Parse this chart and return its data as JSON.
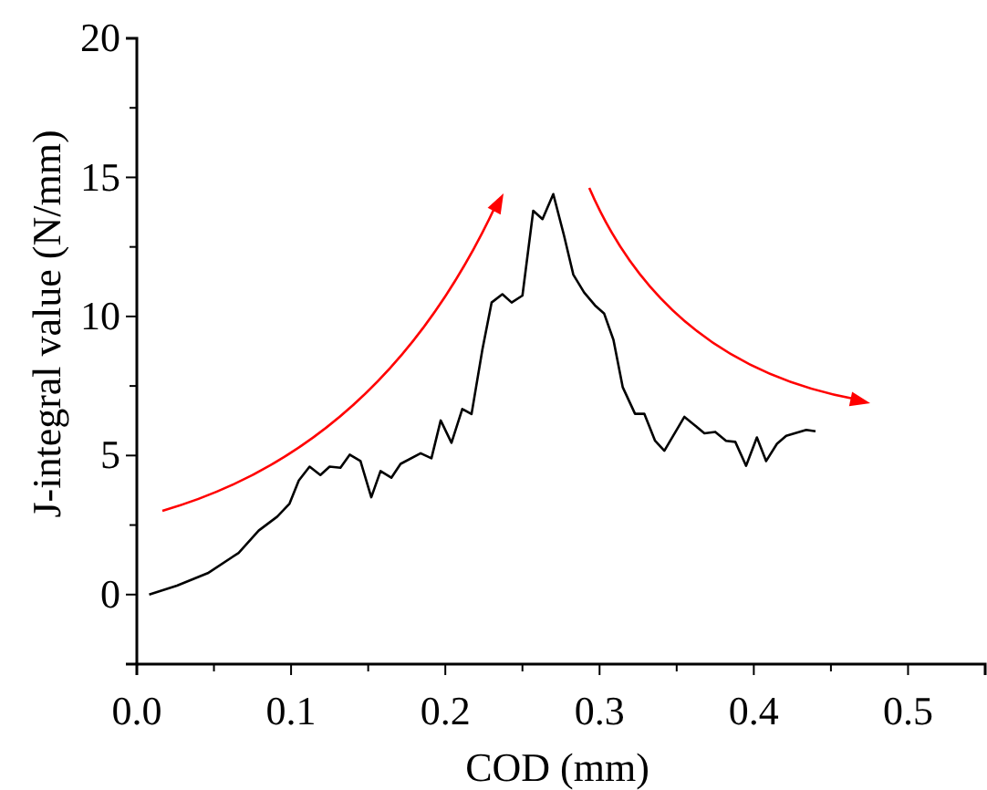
{
  "chart_data": {
    "type": "line",
    "xlabel": "COD (mm)",
    "ylabel": "J-integral value (N/mm)",
    "xlim": [
      0,
      0.55
    ],
    "ylim": [
      -2.5,
      20
    ],
    "xticks": [
      {
        "value": 0,
        "label": "0.0"
      },
      {
        "value": 0.05,
        "label": null
      },
      0.1,
      {
        "value": 0.15,
        "label": null
      },
      0.2,
      {
        "value": 0.25,
        "label": null
      },
      0.3,
      {
        "value": 0.35,
        "label": null
      },
      0.4,
      {
        "value": 0.45,
        "label": null
      },
      0.5
    ],
    "yticks": [
      0,
      {
        "value": 2.5,
        "label": null
      },
      5,
      {
        "value": 7.5,
        "label": null
      },
      10,
      {
        "value": 12.5,
        "label": null
      },
      15,
      {
        "value": 17.5,
        "label": null
      },
      20
    ],
    "grid": false,
    "marker": "none",
    "line_style": "solid",
    "series": [
      {
        "color": "#000000",
        "x": [
          0.008,
          0.026,
          0.046,
          0.066,
          0.079,
          0.091,
          0.099,
          0.105,
          0.112,
          0.119,
          0.125,
          0.132,
          0.138,
          0.145,
          0.152,
          0.158,
          0.165,
          0.171,
          0.184,
          0.191,
          0.197,
          0.204,
          0.211,
          0.217,
          0.224,
          0.23,
          0.237,
          0.243,
          0.25,
          0.257,
          0.263,
          0.27,
          0.277,
          0.283,
          0.29,
          0.297,
          0.303,
          0.309,
          0.315,
          0.323,
          0.329,
          0.336,
          0.342,
          0.355,
          0.368,
          0.375,
          0.382,
          0.388,
          0.395,
          0.402,
          0.408,
          0.415,
          0.421,
          0.434,
          0.44
        ],
        "values": [
          0,
          0.32,
          0.77,
          1.5,
          2.3,
          2.8,
          3.27,
          4.1,
          4.6,
          4.3,
          4.6,
          4.56,
          5.03,
          4.8,
          3.5,
          4.44,
          4.2,
          4.7,
          5.08,
          4.9,
          6.26,
          5.46,
          6.67,
          6.49,
          8.8,
          10.5,
          10.8,
          10.5,
          10.75,
          13.8,
          13.5,
          14.4,
          12.9,
          11.5,
          10.86,
          10.4,
          10.1,
          9.16,
          7.46,
          6.5,
          6.5,
          5.53,
          5.17,
          6.39,
          5.8,
          5.85,
          5.53,
          5.49,
          4.63,
          5.65,
          4.8,
          5.42,
          5.71,
          5.92,
          5.87
        ]
      }
    ]
  }
}
